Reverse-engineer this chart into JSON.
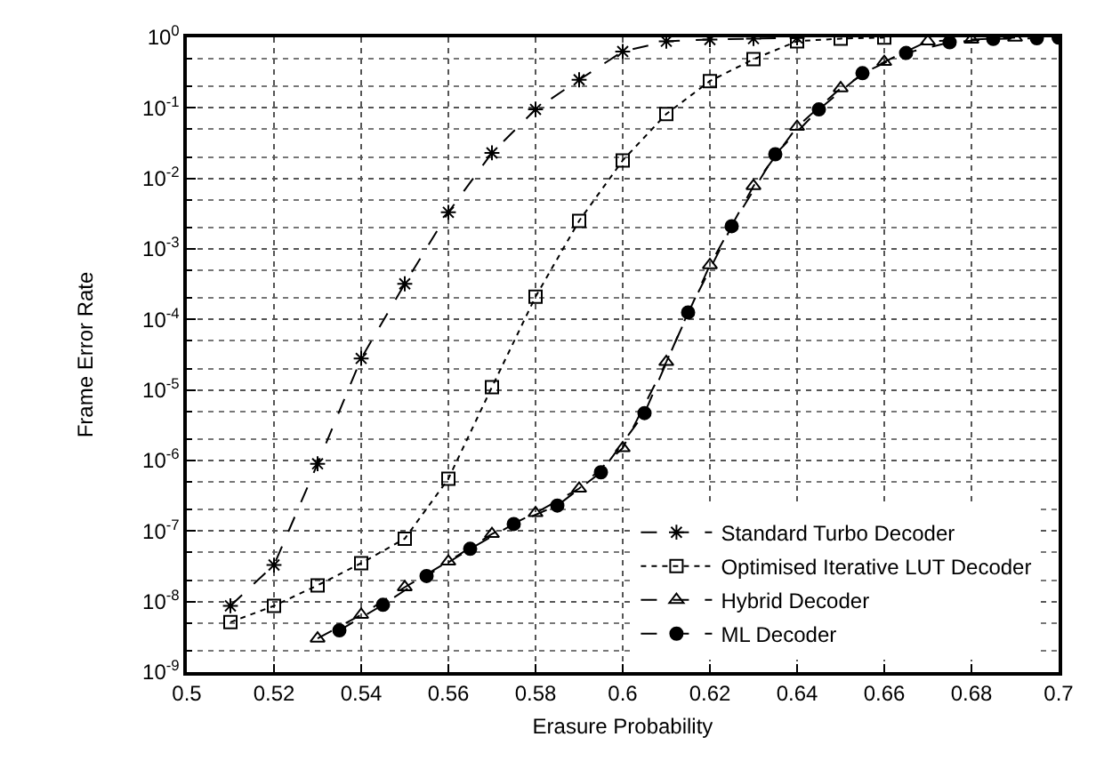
{
  "chart_data": {
    "type": "line",
    "xlabel": "Erasure Probability",
    "ylabel": "Frame Error Rate",
    "log": "y",
    "grid": true,
    "legend": "bottom right",
    "xlim": [
      0.5,
      0.7
    ],
    "xticks": [
      0.5,
      0.52,
      0.54,
      0.56,
      0.58,
      0.6,
      0.62,
      0.64,
      0.66,
      0.68,
      0.7
    ],
    "ylim": [
      1e-09,
      1
    ],
    "yticks": [
      {
        "value": 1e-09,
        "label": "10$^{-9}$"
      },
      {
        "value": 1e-08,
        "label": "10$^{-8}$"
      },
      {
        "value": 1e-07,
        "label": "10$^{-7}$"
      },
      {
        "value": 1e-06,
        "label": "10$^{-6}$"
      },
      {
        "value": 1e-05,
        "label": "10$^{-5}$"
      },
      {
        "value": 0.0001,
        "label": "10$^{-4}$"
      },
      {
        "value": 0.001,
        "label": "10$^{-3}$"
      },
      {
        "value": 0.01,
        "label": "10$^{-2}$"
      },
      {
        "value": 0.1,
        "label": "10$^{-1}$"
      },
      {
        "value": 1,
        "label": "10$^{0}$"
      }
    ],
    "series": [
      {
        "name": "Standard Turbo Decoder",
        "color": "#000000",
        "marker": "cross",
        "line_style": "dashed",
        "x": [
          0.51,
          0.52,
          0.53,
          0.54,
          0.55,
          0.56,
          0.57,
          0.58,
          0.59,
          0.6,
          0.61,
          0.62,
          0.63,
          0.64
        ],
        "values": [
          8.7e-09,
          3.3e-08,
          9e-07,
          2.8e-05,
          0.00032,
          0.0033,
          0.023,
          0.095,
          0.25,
          0.63,
          0.88,
          0.93,
          0.96,
          0.98
        ]
      },
      {
        "name": "Optimised Iterative LUT Decoder",
        "color": "#000000",
        "marker": "square",
        "line_style": "dotted",
        "x": [
          0.51,
          0.52,
          0.53,
          0.54,
          0.55,
          0.56,
          0.57,
          0.58,
          0.59,
          0.6,
          0.61,
          0.62,
          0.63,
          0.64,
          0.65,
          0.66
        ],
        "values": [
          5.1e-09,
          8.7e-09,
          1.7e-08,
          3.5e-08,
          7.8e-08,
          5.5e-07,
          1.1e-05,
          0.00021,
          0.0025,
          0.018,
          0.082,
          0.24,
          0.49,
          0.88,
          0.96,
          0.99
        ]
      },
      {
        "name": "Hybrid Decoder",
        "color": "#000000",
        "marker": "triangle",
        "line_style": "dashed",
        "x": [
          0.53,
          0.54,
          0.55,
          0.56,
          0.57,
          0.58,
          0.59,
          0.6,
          0.61,
          0.62,
          0.63,
          0.64,
          0.65,
          0.66,
          0.67,
          0.68,
          0.69
        ],
        "values": [
          3e-09,
          6.5e-09,
          1.6e-08,
          3.7e-08,
          9.1e-08,
          1.8e-07,
          4e-07,
          1.5e-06,
          2.5e-05,
          0.00059,
          0.0078,
          0.054,
          0.19,
          0.45,
          0.88,
          0.93,
          0.99
        ]
      },
      {
        "name": "ML Decoder",
        "color": "#000000",
        "marker": "circle",
        "line_style": "dashed",
        "x": [
          0.535,
          0.545,
          0.555,
          0.565,
          0.575,
          0.585,
          0.595,
          0.605,
          0.615,
          0.625,
          0.635,
          0.645,
          0.655,
          0.665,
          0.675,
          0.685,
          0.695,
          0.7
        ],
        "values": [
          3.9e-09,
          9e-09,
          2.3e-08,
          5.6e-08,
          1.26e-07,
          2.3e-07,
          6.8e-07,
          4.7e-06,
          0.000126,
          0.0021,
          0.022,
          0.095,
          0.31,
          0.6,
          0.85,
          0.95,
          0.97,
          0.99
        ]
      }
    ]
  }
}
